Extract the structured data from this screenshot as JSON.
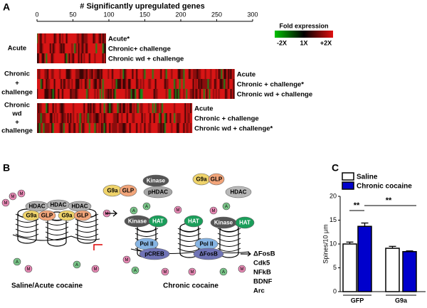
{
  "panels": [
    "A",
    "B",
    "C"
  ],
  "chart_data": [
    {
      "type": "heatmap-bar",
      "title": "# Significantly upregulated genes",
      "categories": [
        [
          "Acute"
        ],
        [
          "Chronic",
          "+",
          "challenge"
        ],
        [
          "Chronic",
          "wd",
          "+",
          "challenge"
        ]
      ],
      "values": [
        96,
        275,
        216
      ],
      "row_labels": [
        [
          "Acute*",
          "Chronic+ challenge",
          "Chronic wd + challenge"
        ],
        [
          "Acute",
          "Chronic + challenge*",
          "Chronic wd + challenge"
        ],
        [
          "Acute",
          "Chronic + challenge",
          "Chronic wd + challenge*"
        ]
      ],
      "xlim": [
        0,
        300
      ],
      "xticks": [
        0,
        50,
        100,
        150,
        200,
        250,
        300
      ],
      "legend": {
        "title": "Fold expression",
        "labels": [
          "-2X",
          "1X",
          "+2X"
        ],
        "colors": [
          "#00c000",
          "#000000",
          "#e01010"
        ]
      }
    },
    {
      "type": "bar",
      "y_label": "Spines/10 μm",
      "categories": [
        "GFP",
        "G9a"
      ],
      "series": [
        {
          "name": "Saline",
          "color": "#ffffff",
          "values": [
            10.0,
            9.1
          ],
          "errors": [
            0.4,
            0.4
          ]
        },
        {
          "name": "Chronic cocaine",
          "color": "#0000cc",
          "values": [
            13.7,
            8.4
          ],
          "errors": [
            0.7,
            0.15
          ]
        }
      ],
      "ylim": [
        0,
        20
      ],
      "yticks": [
        0,
        5,
        10,
        15,
        20
      ],
      "annotations": [
        "**",
        "**"
      ]
    }
  ],
  "diagram": {
    "nodes": [
      {
        "label": "HDAC",
        "color": "#b0b0b0"
      },
      {
        "label": "HDAC",
        "color": "#b0b0b0"
      },
      {
        "label": "HDAC",
        "color": "#b0b0b0"
      },
      {
        "label": "G9a",
        "color": "#efd36a"
      },
      {
        "label": "GLP",
        "color": "#f2a57a"
      },
      {
        "label": "G9a",
        "color": "#efd36a"
      },
      {
        "label": "GLP",
        "color": "#f2a57a"
      },
      {
        "label": "G9a",
        "color": "#efd36a"
      },
      {
        "label": "GLP",
        "color": "#f2a57a"
      },
      {
        "label": "Kinase",
        "color": "#555555"
      },
      {
        "label": "pHDAC",
        "color": "#a8a8a8"
      },
      {
        "label": "G9a",
        "color": "#efd36a"
      },
      {
        "label": "GLP",
        "color": "#f2a57a"
      },
      {
        "label": "HDAC",
        "color": "#b8b8b8"
      },
      {
        "label": "Kinase",
        "color": "#555555"
      },
      {
        "label": "HAT",
        "color": "#1a9e5a"
      },
      {
        "label": "HAT",
        "color": "#1a9e5a"
      },
      {
        "label": "Kinase",
        "color": "#555555"
      },
      {
        "label": "HAT",
        "color": "#1a9e5a"
      },
      {
        "label": "Pol II",
        "color": "#86b4e3"
      },
      {
        "label": "pCREB",
        "color": "#6f73b5"
      },
      {
        "label": "Pol II",
        "color": "#86b4e3"
      },
      {
        "label": "ΔFosB",
        "color": "#6f73b5"
      }
    ],
    "tail_labels": [
      "M",
      "A"
    ],
    "captions": [
      "Saline/Acute cocaine",
      "Chronic cocaine"
    ],
    "genes": [
      "ΔFosB",
      "Cdk5",
      "NFkB",
      "BDNF",
      "Arc"
    ]
  }
}
